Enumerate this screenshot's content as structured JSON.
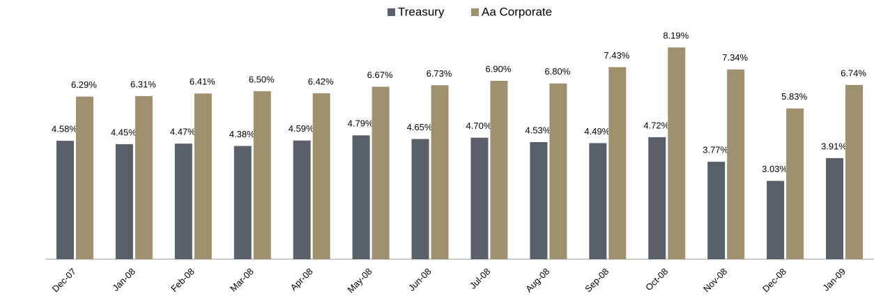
{
  "chart_data": {
    "type": "bar",
    "categories": [
      "Dec-07",
      "Jan-08",
      "Feb-08",
      "Mar-08",
      "Apr-08",
      "May-08",
      "Jun-08",
      "Jul-08",
      "Aug-08",
      "Sep-08",
      "Oct-08",
      "Nov-08",
      "Dec-08",
      "Jan-09"
    ],
    "series": [
      {
        "name": "Treasury",
        "color": "#5a6069",
        "values": [
          4.58,
          4.45,
          4.47,
          4.38,
          4.59,
          4.79,
          4.65,
          4.7,
          4.53,
          4.49,
          4.72,
          3.77,
          3.03,
          3.91
        ],
        "value_labels": [
          "4.58%",
          "4.45%",
          "4.47%",
          "4.38%",
          "4.59%",
          "4.79%",
          "4.65%",
          "4.70%",
          "4.53%",
          "4.49%",
          "4.72%",
          "3.77%",
          "3.03%",
          "3.91%"
        ]
      },
      {
        "name": "Aa Corporate",
        "color": "#a0916e",
        "values": [
          6.29,
          6.31,
          6.41,
          6.5,
          6.42,
          6.67,
          6.73,
          6.9,
          6.8,
          7.43,
          8.19,
          7.34,
          5.83,
          6.74
        ],
        "value_labels": [
          "6.29%",
          "6.31%",
          "6.41%",
          "6.50%",
          "6.42%",
          "6.67%",
          "6.73%",
          "6.90%",
          "6.80%",
          "7.43%",
          "8.19%",
          "7.34%",
          "5.83%",
          "6.74%"
        ]
      }
    ],
    "legend": "top"
  }
}
